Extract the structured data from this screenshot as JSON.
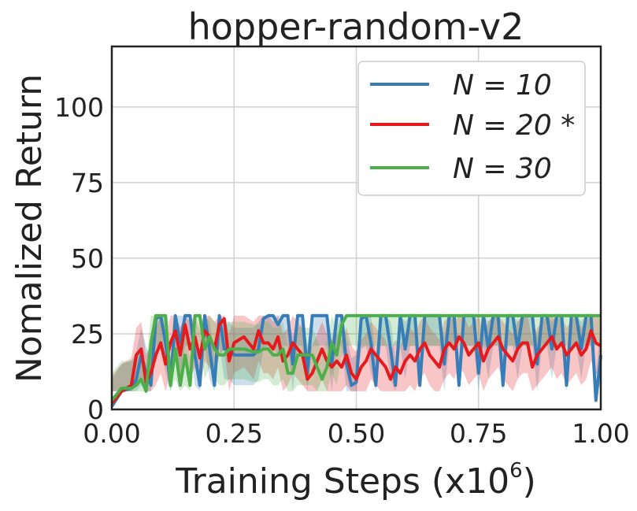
{
  "chart_data": {
    "type": "line",
    "title": "hopper-random-v2",
    "xlabel": "Training Steps (x10",
    "xlabel_exp": "6",
    "xlabel_close": ")",
    "ylabel": "Nomalized Return",
    "xlim": [
      0,
      1
    ],
    "ylim": [
      0,
      120
    ],
    "xticks": [
      0,
      0.25,
      0.5,
      0.75,
      1.0
    ],
    "xtick_labels": [
      "0.00",
      "0.25",
      "0.50",
      "0.75",
      "1.00"
    ],
    "yticks": [
      0,
      25,
      50,
      75,
      100
    ],
    "ytick_labels": [
      "0",
      "25",
      "50",
      "75",
      "100"
    ],
    "grid": true,
    "legend_position": "top-right",
    "series": [
      {
        "name": "N = 10",
        "color": "#377eb8",
        "x": [
          0.0,
          0.02,
          0.04,
          0.05,
          0.06,
          0.07,
          0.08,
          0.09,
          0.1,
          0.11,
          0.12,
          0.13,
          0.14,
          0.15,
          0.16,
          0.17,
          0.18,
          0.19,
          0.2,
          0.21,
          0.22,
          0.23,
          0.24,
          0.25,
          0.27,
          0.29,
          0.3,
          0.31,
          0.32,
          0.33,
          0.34,
          0.35,
          0.36,
          0.37,
          0.38,
          0.39,
          0.4,
          0.41,
          0.42,
          0.43,
          0.44,
          0.45,
          0.46,
          0.47,
          0.48,
          0.49,
          0.5,
          0.51,
          0.52,
          0.53,
          0.54,
          0.55,
          0.56,
          0.57,
          0.58,
          0.59,
          0.6,
          0.61,
          0.62,
          0.63,
          0.64,
          0.65,
          0.66,
          0.67,
          0.68,
          0.69,
          0.7,
          0.71,
          0.72,
          0.73,
          0.74,
          0.75,
          0.76,
          0.77,
          0.78,
          0.79,
          0.8,
          0.81,
          0.82,
          0.83,
          0.84,
          0.85,
          0.86,
          0.87,
          0.88,
          0.89,
          0.9,
          0.91,
          0.92,
          0.93,
          0.94,
          0.95,
          0.96,
          0.97,
          0.98,
          0.99,
          1.0
        ],
        "y": [
          1,
          6,
          7,
          10,
          18,
          12,
          8,
          30,
          31,
          22,
          8,
          31,
          22,
          31,
          31,
          18,
          8,
          31,
          20,
          8,
          31,
          20,
          20,
          18,
          18,
          18,
          20,
          30,
          31,
          31,
          28,
          31,
          31,
          15,
          31,
          31,
          12,
          31,
          31,
          31,
          31,
          15,
          31,
          31,
          15,
          8,
          9,
          30,
          31,
          22,
          8,
          31,
          31,
          20,
          8,
          31,
          20,
          31,
          31,
          8,
          31,
          31,
          31,
          31,
          15,
          31,
          31,
          8,
          31,
          31,
          31,
          12,
          31,
          20,
          31,
          31,
          8,
          31,
          31,
          20,
          31,
          31,
          31,
          15,
          31,
          31,
          20,
          31,
          31,
          8,
          31,
          31,
          20,
          31,
          31,
          3,
          18
        ]
      },
      {
        "name": "N = 20 *",
        "color": "#e41a1c",
        "x": [
          0.0,
          0.02,
          0.04,
          0.05,
          0.06,
          0.07,
          0.08,
          0.09,
          0.1,
          0.11,
          0.12,
          0.13,
          0.14,
          0.15,
          0.16,
          0.17,
          0.18,
          0.19,
          0.2,
          0.21,
          0.22,
          0.23,
          0.24,
          0.25,
          0.27,
          0.29,
          0.3,
          0.31,
          0.32,
          0.33,
          0.34,
          0.35,
          0.36,
          0.37,
          0.38,
          0.39,
          0.4,
          0.41,
          0.42,
          0.43,
          0.44,
          0.45,
          0.46,
          0.47,
          0.48,
          0.49,
          0.5,
          0.51,
          0.52,
          0.53,
          0.54,
          0.55,
          0.56,
          0.57,
          0.58,
          0.59,
          0.6,
          0.61,
          0.62,
          0.63,
          0.64,
          0.65,
          0.66,
          0.67,
          0.68,
          0.69,
          0.7,
          0.71,
          0.72,
          0.73,
          0.74,
          0.75,
          0.76,
          0.77,
          0.78,
          0.79,
          0.8,
          0.81,
          0.82,
          0.83,
          0.84,
          0.85,
          0.86,
          0.87,
          0.88,
          0.89,
          0.9,
          0.91,
          0.92,
          0.93,
          0.94,
          0.95,
          0.96,
          0.97,
          0.98,
          0.99,
          1.0
        ],
        "y": [
          2,
          6,
          8,
          18,
          20,
          9,
          12,
          18,
          22,
          15,
          22,
          26,
          18,
          28,
          20,
          24,
          17,
          26,
          24,
          20,
          28,
          30,
          16,
          22,
          24,
          20,
          26,
          22,
          22,
          20,
          24,
          16,
          18,
          22,
          20,
          18,
          10,
          12,
          16,
          20,
          16,
          14,
          16,
          14,
          18,
          12,
          10,
          14,
          16,
          20,
          18,
          16,
          14,
          10,
          14,
          12,
          16,
          18,
          16,
          20,
          22,
          18,
          16,
          14,
          20,
          22,
          20,
          24,
          22,
          18,
          20,
          22,
          16,
          20,
          22,
          24,
          20,
          18,
          16,
          20,
          22,
          22,
          14,
          18,
          20,
          22,
          24,
          20,
          22,
          18,
          20,
          22,
          18,
          20,
          26,
          22,
          21
        ]
      },
      {
        "name": "N = 30",
        "color": "#4daf4a",
        "x": [
          0.0,
          0.02,
          0.04,
          0.05,
          0.06,
          0.07,
          0.08,
          0.09,
          0.1,
          0.11,
          0.12,
          0.13,
          0.14,
          0.15,
          0.16,
          0.17,
          0.18,
          0.19,
          0.2,
          0.21,
          0.22,
          0.23,
          0.24,
          0.25,
          0.27,
          0.29,
          0.3,
          0.31,
          0.32,
          0.33,
          0.34,
          0.35,
          0.36,
          0.37,
          0.38,
          0.39,
          0.4,
          0.41,
          0.42,
          0.43,
          0.44,
          0.45,
          0.46,
          0.47,
          0.48,
          0.49,
          0.5,
          0.51,
          0.52,
          0.53,
          0.54,
          0.55,
          0.56,
          0.57,
          0.58,
          0.59,
          0.6,
          0.61,
          0.62,
          0.63,
          0.64,
          0.65,
          0.66,
          0.67,
          0.68,
          0.69,
          0.7,
          0.71,
          0.72,
          0.73,
          0.74,
          0.75,
          0.76,
          0.77,
          0.78,
          0.79,
          0.8,
          0.81,
          0.82,
          0.83,
          0.84,
          0.85,
          0.86,
          0.87,
          0.88,
          0.89,
          0.9,
          0.91,
          0.92,
          0.93,
          0.94,
          0.95,
          0.96,
          0.97,
          0.98,
          0.99,
          1.0
        ],
        "y": [
          3,
          7,
          7,
          8,
          10,
          6,
          22,
          31,
          31,
          31,
          8,
          20,
          8,
          18,
          8,
          31,
          31,
          20,
          24,
          20,
          18,
          18,
          20,
          20,
          20,
          19,
          19,
          20,
          20,
          18,
          18,
          20,
          12,
          12,
          18,
          18,
          18,
          18,
          14,
          10,
          14,
          22,
          18,
          28,
          31,
          31,
          31,
          31,
          31,
          31,
          31,
          31,
          31,
          31,
          31,
          31,
          31,
          31,
          31,
          31,
          31,
          31,
          31,
          31,
          31,
          31,
          31,
          31,
          31,
          31,
          31,
          31,
          31,
          31,
          31,
          31,
          31,
          31,
          31,
          31,
          31,
          31,
          31,
          31,
          31,
          31,
          31,
          31,
          31,
          31,
          31,
          31,
          31,
          31,
          31,
          31,
          31
        ]
      }
    ]
  }
}
